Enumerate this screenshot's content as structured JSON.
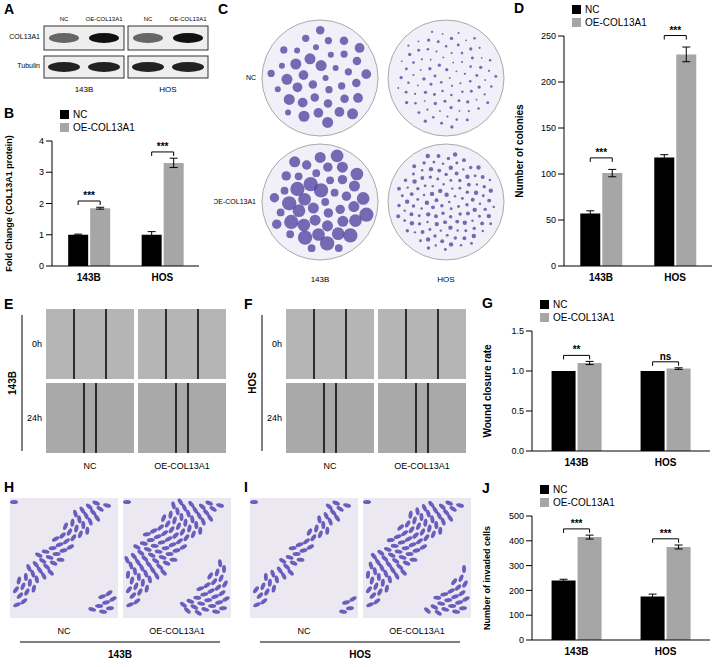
{
  "chart_data": [
    {
      "panel": "B",
      "type": "bar",
      "y_label": "Fold Change (COL13A1 protein)",
      "categories": [
        "143B",
        "HOS"
      ],
      "series": [
        {
          "name": "NC",
          "color": "#000000",
          "values": [
            1.0,
            1.0
          ],
          "errors": [
            0.02,
            0.1
          ]
        },
        {
          "name": "OE-COL13A1",
          "color": "#a6a6a6",
          "values": [
            1.85,
            3.3
          ],
          "errors": [
            0.03,
            0.15
          ]
        }
      ],
      "significance": [
        "***",
        "***"
      ],
      "ylim": [
        0,
        4
      ],
      "yticks": [
        0,
        1,
        2,
        3,
        4
      ],
      "legend": "top left"
    },
    {
      "panel": "D",
      "type": "bar",
      "y_label": "Number of colonies",
      "categories": [
        "143B",
        "HOS"
      ],
      "series": [
        {
          "name": "NC",
          "color": "#000000",
          "values": [
            57,
            118
          ],
          "errors": [
            3,
            3
          ]
        },
        {
          "name": "OE-COL13A1",
          "color": "#a6a6a6",
          "values": [
            101,
            230
          ],
          "errors": [
            4,
            8
          ]
        }
      ],
      "significance": [
        "***",
        "***"
      ],
      "ylim": [
        0,
        250
      ],
      "yticks": [
        0,
        50,
        100,
        150,
        200,
        250
      ],
      "legend": "top left"
    },
    {
      "panel": "G",
      "type": "bar",
      "y_label": "Wound closure rate",
      "categories": [
        "143B",
        "HOS"
      ],
      "series": [
        {
          "name": "NC",
          "color": "#000000",
          "values": [
            1.0,
            1.0
          ],
          "errors": [
            0,
            0
          ]
        },
        {
          "name": "OE-COL13A1",
          "color": "#a6a6a6",
          "values": [
            1.1,
            1.03
          ],
          "errors": [
            0.02,
            0.01
          ]
        }
      ],
      "significance": [
        "**",
        "ns"
      ],
      "ylim": [
        0,
        1.5
      ],
      "yticks": [
        {
          "value": 0,
          "label": "0.0"
        },
        {
          "value": 0.5,
          "label": "0.5"
        },
        {
          "value": 1,
          "label": "1.0"
        },
        {
          "value": 1.5,
          "label": "1.5"
        }
      ],
      "legend": "top left"
    },
    {
      "panel": "J",
      "type": "bar",
      "y_label": "Number of invaded cells",
      "categories": [
        "143B",
        "HOS"
      ],
      "series": [
        {
          "name": "NC",
          "color": "#000000",
          "values": [
            240,
            175
          ],
          "errors": [
            5,
            10
          ]
        },
        {
          "name": "OE-COL13A1",
          "color": "#a6a6a6",
          "values": [
            415,
            375
          ],
          "errors": [
            8,
            8
          ]
        }
      ],
      "significance": [
        "***",
        "***"
      ],
      "ylim": [
        0,
        500
      ],
      "yticks": [
        0,
        100,
        200,
        300,
        400,
        500
      ],
      "legend": "top left"
    }
  ],
  "image_panels": [
    {
      "panel": "A",
      "row_labels": [
        "COL13A1",
        "Tubulin"
      ],
      "column_labels": [
        "NC",
        "OE-COL13A1",
        "NC",
        "OE-COL13A1"
      ],
      "group_labels": [
        "143B",
        "HOS"
      ]
    },
    {
      "panel": "C",
      "row_labels": [
        "NC",
        "OE-COL13A1"
      ],
      "group_labels": [
        "143B",
        "HOS"
      ]
    },
    {
      "panel": "E",
      "cell_line": "143B",
      "time_labels": [
        "0h",
        "24h"
      ],
      "column_labels": [
        "NC",
        "OE-COL13A1"
      ]
    },
    {
      "panel": "F",
      "cell_line": "HOS",
      "time_labels": [
        "0h",
        "24h"
      ],
      "column_labels": [
        "NC",
        "OE-COL13A1"
      ]
    },
    {
      "panel": "H",
      "cell_line": "143B",
      "column_labels": [
        "NC",
        "OE-COL13A1"
      ]
    },
    {
      "panel": "I",
      "cell_line": "HOS",
      "column_labels": [
        "NC",
        "OE-COL13A1"
      ]
    }
  ]
}
